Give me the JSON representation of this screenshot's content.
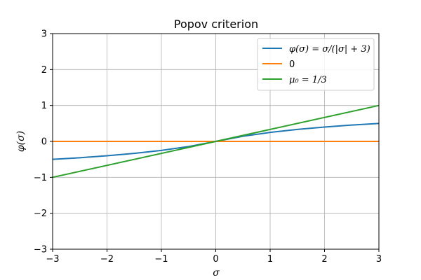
{
  "chart_data": {
    "type": "line",
    "title": "Popov criterion",
    "xlabel": "σ",
    "ylabel": "φ(σ)",
    "xlim": [
      -3,
      3
    ],
    "ylim": [
      -3,
      3
    ],
    "xticks": [
      -3,
      -2,
      -1,
      0,
      1,
      2,
      3
    ],
    "yticks": [
      -3,
      -2,
      -1,
      0,
      1,
      2,
      3
    ],
    "xtick_labels": [
      "−3",
      "−2",
      "−1",
      "0",
      "1",
      "2",
      "3"
    ],
    "ytick_labels": [
      "−3",
      "−2",
      "−1",
      "0",
      "1",
      "2",
      "3"
    ],
    "grid": true,
    "legend_position": "top-right",
    "series": [
      {
        "name": "φ(σ) = σ/(|σ| + 3)",
        "color": "#1f77b4",
        "x": [
          -3,
          -2.5,
          -2,
          -1.5,
          -1,
          -0.5,
          0,
          0.5,
          1,
          1.5,
          2,
          2.5,
          3
        ],
        "y": [
          -0.5,
          -0.4545,
          -0.4,
          -0.3333,
          -0.25,
          -0.1429,
          0,
          0.1429,
          0.25,
          0.3333,
          0.4,
          0.4545,
          0.5
        ]
      },
      {
        "name": "0",
        "color": "#ff7f0e",
        "x": [
          -3,
          3
        ],
        "y": [
          0,
          0
        ]
      },
      {
        "name": "μ₀ = 1/3",
        "color": "#2ca02c",
        "x": [
          -3,
          3
        ],
        "y": [
          -1,
          1
        ]
      }
    ]
  }
}
